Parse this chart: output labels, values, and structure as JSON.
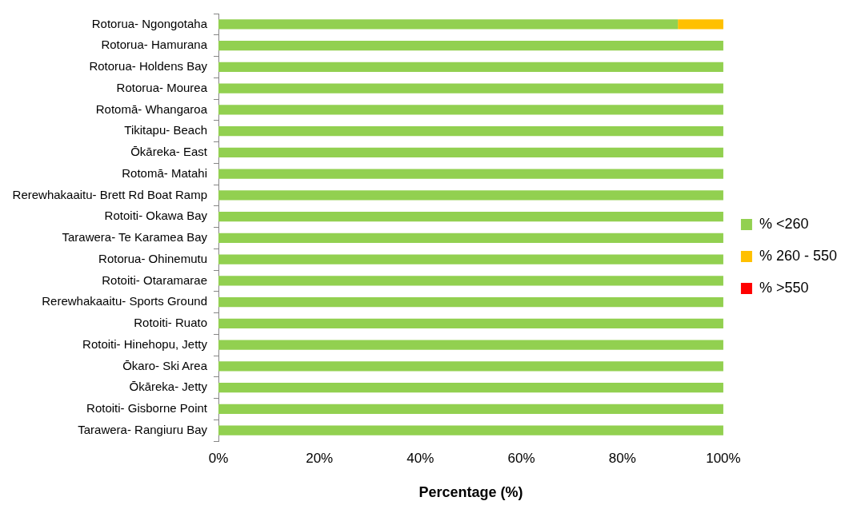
{
  "chart_data": {
    "type": "bar",
    "orientation": "horizontal",
    "stacked": true,
    "xlabel": "Percentage (%)",
    "categories": [
      "Rotorua- Ngongotaha",
      "Rotorua- Hamurana",
      "Rotorua- Holdens Bay",
      "Rotorua- Mourea",
      "Rotomā- Whangaroa",
      "Tikitapu- Beach",
      "Ōkāreka- East",
      "Rotomā- Matahi",
      "Rerewhakaaitu- Brett Rd Boat Ramp",
      "Rotoiti- Okawa Bay",
      "Tarawera- Te Karamea Bay",
      "Rotorua- Ohinemutu",
      "Rotoiti- Otaramarae",
      "Rerewhakaaitu- Sports Ground",
      "Rotoiti- Ruato",
      "Rotoiti- Hinehopu, Jetty",
      "Ōkaro- Ski Area",
      "Ōkāreka- Jetty",
      "Rotoiti- Gisborne Point",
      "Tarawera- Rangiuru Bay"
    ],
    "series": [
      {
        "name": "% <260",
        "color": "#92d050",
        "values": [
          91,
          100,
          100,
          100,
          100,
          100,
          100,
          100,
          100,
          100,
          100,
          100,
          100,
          100,
          100,
          100,
          100,
          100,
          100,
          100
        ]
      },
      {
        "name": "% 260 - 550",
        "color": "#ffc000",
        "values": [
          9,
          0,
          0,
          0,
          0,
          0,
          0,
          0,
          0,
          0,
          0,
          0,
          0,
          0,
          0,
          0,
          0,
          0,
          0,
          0
        ]
      },
      {
        "name": "% >550",
        "color": "#ff0000",
        "values": [
          0,
          0,
          0,
          0,
          0,
          0,
          0,
          0,
          0,
          0,
          0,
          0,
          0,
          0,
          0,
          0,
          0,
          0,
          0,
          0
        ]
      }
    ],
    "xlim": [
      0,
      100
    ],
    "xticks": [
      {
        "value": 0,
        "label": "0%"
      },
      {
        "value": 20,
        "label": "20%"
      },
      {
        "value": 40,
        "label": "40%"
      },
      {
        "value": 60,
        "label": "60%"
      },
      {
        "value": 80,
        "label": "80%"
      },
      {
        "value": 100,
        "label": "100%"
      }
    ],
    "grid": false,
    "legend": "right"
  }
}
